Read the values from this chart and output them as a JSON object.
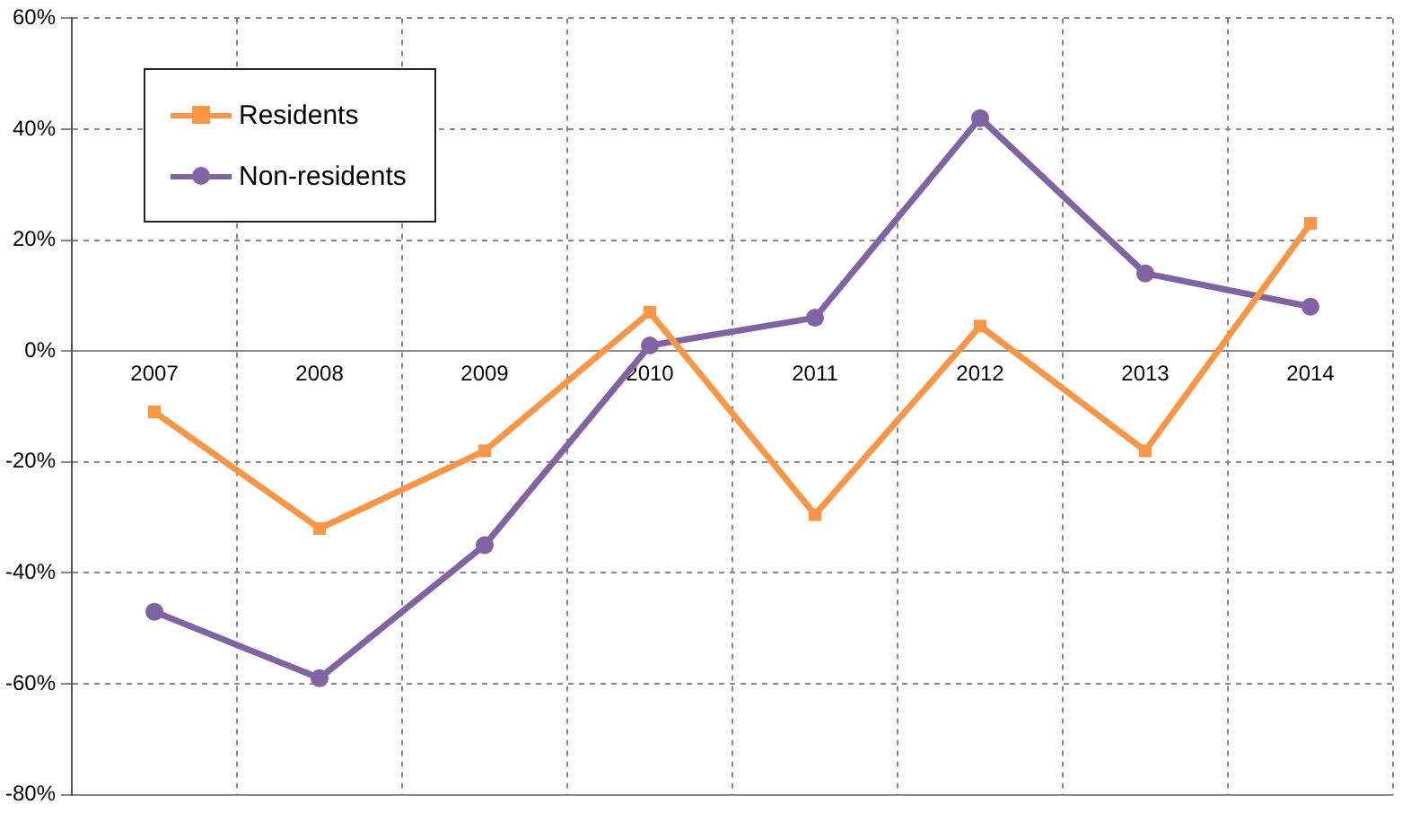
{
  "chart_data": {
    "type": "line",
    "categories": [
      "2007",
      "2008",
      "2009",
      "2010",
      "2011",
      "2012",
      "2013",
      "2014"
    ],
    "series": [
      {
        "name": "Residents",
        "color": "#f79646",
        "marker": "square",
        "values": [
          -11,
          -32,
          -18,
          7,
          -29.5,
          4.5,
          -18,
          23
        ]
      },
      {
        "name": "Non-residents",
        "color": "#8064a2",
        "marker": "circle",
        "values": [
          -47,
          -59,
          -35,
          1,
          6,
          42,
          14,
          8
        ]
      }
    ],
    "ylim": [
      -80,
      60
    ],
    "yticks": [
      {
        "value": -80,
        "label": "-80%"
      },
      {
        "value": -60,
        "label": "-60%"
      },
      {
        "value": -40,
        "label": "-40%"
      },
      {
        "value": -20,
        "label": "-20%"
      },
      {
        "value": 0,
        "label": "0%"
      },
      {
        "value": 20,
        "label": "20%"
      },
      {
        "value": 40,
        "label": "40%"
      },
      {
        "value": 60,
        "label": "60%"
      }
    ],
    "grid": true,
    "legend": "top left",
    "line_style": "solid"
  }
}
